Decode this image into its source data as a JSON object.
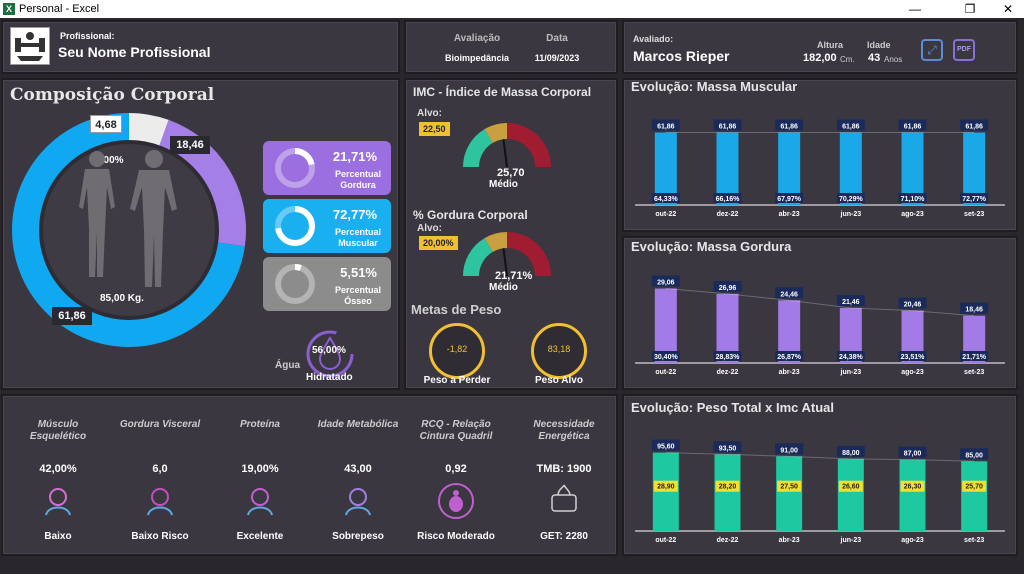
{
  "window": {
    "title": "Personal - Excel",
    "minimize": "—",
    "restore": "❐",
    "close": "✕"
  },
  "header": {
    "profissional_label": "Profissional:",
    "profissional_name": "Seu Nome Profissional",
    "avaliacao_label": "Avaliação",
    "avaliacao_value": "Bioimpedância",
    "data_label": "Data",
    "data_value": "11/09/2023",
    "avaliado_label": "Avaliado:",
    "avaliado_name": "Marcos Rieper",
    "altura_label": "Altura",
    "altura_value": "182,00",
    "altura_unit": "Cm.",
    "idade_label": "Idade",
    "idade_value": "43",
    "idade_unit": "Anos",
    "pdf_label": "PDF"
  },
  "composicao": {
    "title": "Composição Corporal",
    "donut": {
      "gordura": 18.46,
      "musculo": 61.86,
      "osseo": 4.68,
      "gordura_label": "18,46",
      "musculo_label": "61,86",
      "osseo_label": "4,68"
    },
    "total_pct": "100%",
    "peso": "85,00 Kg.",
    "cards": [
      {
        "pct": "21,71%",
        "label1": "Percentual",
        "label2": "Gordura",
        "value": 0.2171,
        "color": "#9b6fe0"
      },
      {
        "pct": "72,77%",
        "label1": "Percentual",
        "label2": "Muscular",
        "value": 0.7277,
        "color": "#1ab0f0"
      },
      {
        "pct": "5,51%",
        "label1": "Percentual",
        "label2": "Ósseo",
        "value": 0.0551,
        "color": "#8c8c8c"
      }
    ],
    "agua_label": "Água",
    "agua_pct": "56,00%",
    "agua_status": "Hidratado"
  },
  "imc": {
    "title": "IMC - Índice de Massa Corporal",
    "alvo_label": "Alvo:",
    "alvo_value": "22,50",
    "value": "25,70",
    "status": "Médio"
  },
  "gordura_corporal": {
    "title": "% Gordura Corporal",
    "alvo_label": "Alvo:",
    "alvo_value": "20,00%",
    "value": "21,71%",
    "status": "Médio"
  },
  "metas": {
    "title": "Metas de Peso",
    "perder_value": "-1,82",
    "perder_label": "Peso a Perder",
    "alvo_value": "83,18",
    "alvo_label": "Peso Alvo"
  },
  "indicators": [
    {
      "label": "Músculo Esquelético",
      "value": "42,00%",
      "status": "Baixo",
      "icon": "muscle-icon"
    },
    {
      "label": "Gordura Visceral",
      "value": "6,0",
      "status": "Baixo Risco",
      "icon": "abdomen-icon"
    },
    {
      "label": "Proteína",
      "value": "19,00%",
      "status": "Excelente",
      "icon": "protein-icon"
    },
    {
      "label": "Idade Metabólica",
      "value": "43,00",
      "status": "Sobrepeso",
      "icon": "people-icon"
    },
    {
      "label": "RCQ - Relação Cintura Quadril",
      "value": "0,92",
      "status": "Risco Moderado",
      "icon": "body-icon"
    },
    {
      "label": "Necessidade Energética",
      "value": "TMB:  1900",
      "status": "GET:  2280",
      "icon": "kcal-icon"
    }
  ],
  "chart_data": [
    {
      "type": "bar",
      "title": "Evolução: Massa Muscular",
      "categories": [
        "out-22",
        "dez-22",
        "abr-23",
        "jun-23",
        "ago-23",
        "set-23"
      ],
      "series": [
        {
          "values": [
            61.86,
            61.86,
            61.86,
            61.86,
            61.86,
            61.86
          ]
        }
      ],
      "value_labels": [
        "61,86",
        "61,86",
        "61,86",
        "61,86",
        "61,86",
        "61,86"
      ],
      "bottom_labels": [
        "64,33%",
        "66,16%",
        "67,97%",
        "70,29%",
        "71,10%",
        "72,77%"
      ],
      "color": "#1aa8e8",
      "ylim": [
        0,
        70
      ]
    },
    {
      "type": "bar",
      "title": "Evolução: Massa Gordura",
      "categories": [
        "out-22",
        "dez-22",
        "abr-23",
        "jun-23",
        "ago-23",
        "set-23"
      ],
      "series": [
        {
          "values": [
            29.06,
            26.96,
            24.46,
            21.46,
            20.46,
            18.46
          ]
        }
      ],
      "value_labels": [
        "29,06",
        "26,96",
        "24,46",
        "21,46",
        "20,46",
        "18,46"
      ],
      "bottom_labels": [
        "30,40%",
        "28,83%",
        "26,87%",
        "24,38%",
        "23,51%",
        "21,71%"
      ],
      "color": "#a27be6",
      "ylim": [
        0,
        32
      ]
    },
    {
      "type": "bar",
      "title": "Evolução: Peso Total x Imc Atual",
      "categories": [
        "out-22",
        "dez-22",
        "abr-23",
        "jun-23",
        "ago-23",
        "set-23"
      ],
      "series": [
        {
          "values": [
            95.6,
            93.5,
            91.0,
            88.0,
            87.0,
            85.0
          ]
        },
        {
          "values": [
            28.9,
            28.2,
            27.5,
            26.6,
            26.3,
            25.7
          ]
        }
      ],
      "value_labels": [
        "95,60",
        "93,50",
        "91,00",
        "88,00",
        "87,00",
        "85,00"
      ],
      "mid_labels": [
        "28,90",
        "28,20",
        "27,50",
        "26,60",
        "26,30",
        "25,70"
      ],
      "color": "#1ec8a0",
      "ylim": [
        0,
        100
      ]
    }
  ]
}
